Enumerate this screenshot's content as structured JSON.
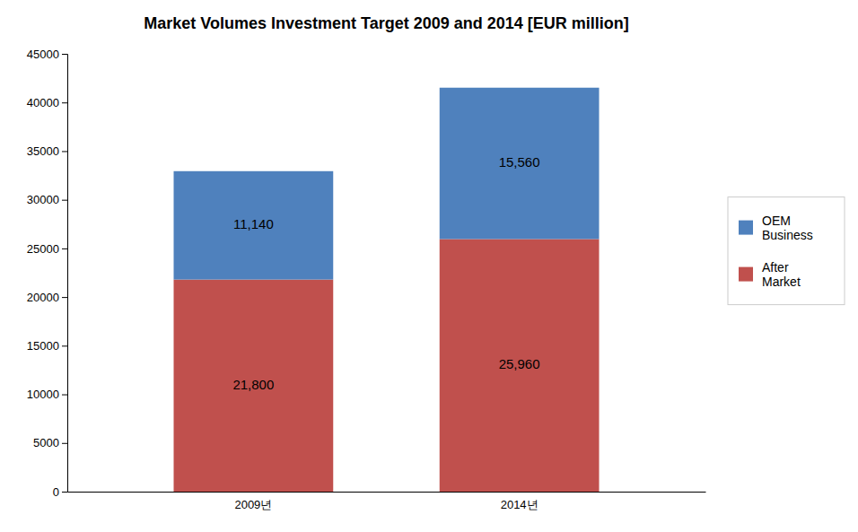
{
  "chart_data": {
    "type": "bar",
    "stacked": true,
    "title": "Market Volumes Investment Target 2009 and 2014 [EUR million]",
    "categories": [
      "2009년",
      "2014년"
    ],
    "series": [
      {
        "name": "After\nMarket",
        "color": "#C0504D",
        "values": [
          21800,
          25960
        ],
        "value_labels": [
          "21,800",
          "25,960"
        ]
      },
      {
        "name": "OEM\nBusiness",
        "color": "#4F81BD",
        "values": [
          11140,
          15560
        ],
        "value_labels": [
          "11,140",
          "15,560"
        ]
      }
    ],
    "ylim": [
      0,
      45000
    ],
    "yticks": [
      0,
      5000,
      10000,
      15000,
      20000,
      25000,
      30000,
      35000,
      40000,
      45000
    ],
    "grid": false,
    "legend": "right",
    "data_labels": true
  }
}
